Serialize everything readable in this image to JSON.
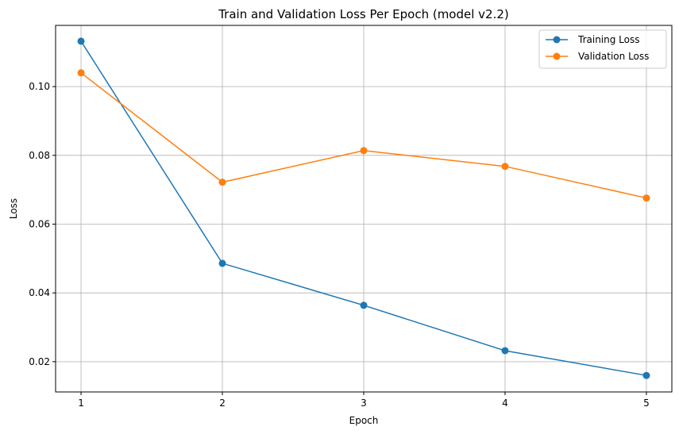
{
  "chart_data": {
    "type": "line",
    "title": "Train and Validation Loss Per Epoch (model v2.2)",
    "xlabel": "Epoch",
    "ylabel": "Loss",
    "x": [
      1,
      2,
      3,
      4,
      5
    ],
    "x_ticks": [
      "1",
      "2",
      "3",
      "4",
      "5"
    ],
    "xlim": [
      0.82,
      5.18
    ],
    "ylim": [
      0.0112,
      0.1178
    ],
    "y_ticks": [
      0.02,
      0.04,
      0.06,
      0.08,
      0.1
    ],
    "y_tick_labels": [
      "0.02",
      "0.04",
      "0.06",
      "0.08",
      "0.10"
    ],
    "grid": true,
    "legend_position": "top-right",
    "series": [
      {
        "name": "Training Loss",
        "color": "#1f77b4",
        "marker": "circle",
        "values": [
          0.1132,
          0.0486,
          0.0364,
          0.0232,
          0.016
        ]
      },
      {
        "name": "Validation Loss",
        "color": "#ff7f0e",
        "marker": "circle",
        "values": [
          0.104,
          0.0722,
          0.0814,
          0.0768,
          0.0676
        ]
      }
    ]
  }
}
